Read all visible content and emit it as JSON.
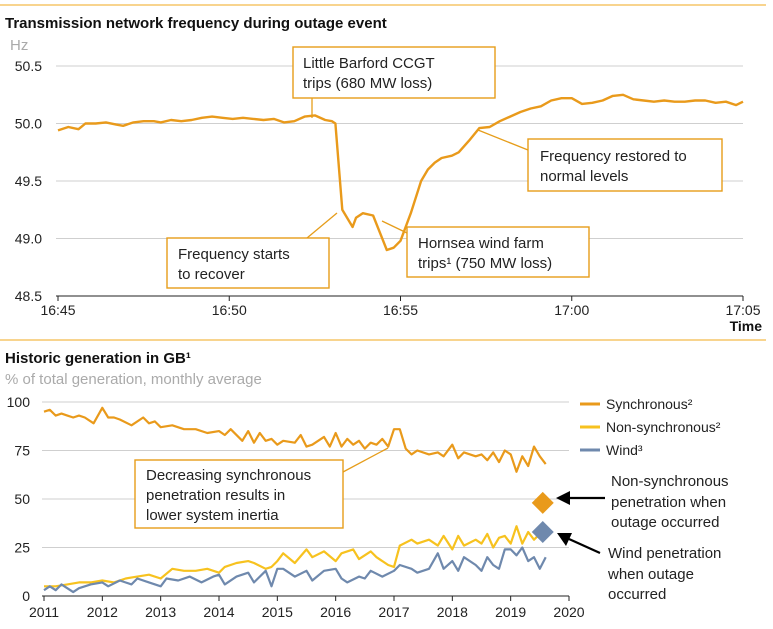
{
  "colors": {
    "synchronous": "#e99a1b",
    "non_synchronous": "#f7c21f",
    "wind": "#6f89ad",
    "accent_rule": "#f0a81c",
    "annotation_border": "#e69d1a"
  },
  "chart_data": [
    {
      "type": "line",
      "title": "Transmission network frequency during outage event",
      "ylabel": "Hz",
      "xlabel": "Time",
      "ylim": [
        48.5,
        50.6
      ],
      "xlim_minutes": [
        0,
        20
      ],
      "yticks": [
        "48.5",
        "49.0",
        "49.5",
        "50.0",
        "50.5"
      ],
      "ytick_values": [
        48.5,
        49.0,
        49.5,
        50.0,
        50.5
      ],
      "xticks": [
        "16:45",
        "16:50",
        "16:55",
        "17:00",
        "17:05"
      ],
      "xtick_values": [
        0,
        5,
        10,
        15,
        20
      ],
      "grid": true,
      "series": [
        {
          "color_key": "synchronous",
          "x": [
            0,
            0.3,
            0.6,
            0.8,
            1.1,
            1.4,
            1.7,
            1.9,
            2.2,
            2.5,
            2.8,
            3.0,
            3.3,
            3.6,
            3.9,
            4.2,
            4.5,
            4.8,
            5.1,
            5.4,
            5.7,
            6.0,
            6.3,
            6.6,
            6.9,
            7.2,
            7.5,
            7.8,
            8.0,
            8.1,
            8.3,
            8.6,
            8.7,
            8.9,
            9.2,
            9.6,
            9.8,
            10.0,
            10.3,
            10.6,
            10.8,
            11.0,
            11.2,
            11.5,
            11.7,
            12.0,
            12.3,
            12.6,
            12.9,
            13.2,
            13.5,
            13.8,
            14.1,
            14.4,
            14.7,
            15.0,
            15.3,
            15.6,
            15.9,
            16.2,
            16.5,
            16.8,
            17.1,
            17.4,
            17.7,
            18.0,
            18.3,
            18.6,
            18.9,
            19.2,
            19.5,
            19.8,
            20.0
          ],
          "y": [
            49.94,
            49.97,
            49.95,
            50.0,
            50.0,
            50.01,
            49.99,
            49.98,
            50.01,
            50.02,
            50.02,
            50.01,
            50.03,
            50.02,
            50.03,
            50.05,
            50.06,
            50.05,
            50.04,
            50.05,
            50.04,
            50.03,
            50.04,
            50.01,
            50.02,
            50.06,
            50.07,
            50.03,
            50.02,
            50.0,
            49.25,
            49.1,
            49.18,
            49.22,
            49.2,
            48.9,
            48.92,
            48.98,
            49.22,
            49.5,
            49.6,
            49.66,
            49.7,
            49.72,
            49.75,
            49.85,
            49.96,
            49.97,
            50.02,
            50.06,
            50.1,
            50.13,
            50.15,
            50.2,
            50.22,
            50.22,
            50.17,
            50.18,
            50.2,
            50.24,
            50.25,
            50.21,
            50.2,
            50.19,
            50.2,
            50.19,
            50.19,
            50.2,
            50.2,
            50.18,
            50.19,
            50.16,
            50.19
          ]
        }
      ],
      "annotations": [
        {
          "lines": [
            "Little Barford CCGT",
            "trips (680 MW loss)"
          ]
        },
        {
          "lines": [
            "Frequency restored to",
            "normal levels"
          ]
        },
        {
          "lines": [
            "Frequency starts",
            "to recover"
          ]
        },
        {
          "lines": [
            "Hornsea wind farm",
            "trips¹ (750 MW loss)"
          ]
        }
      ]
    },
    {
      "type": "line",
      "title": "Historic generation in GB¹",
      "ylabel": "% of total generation, monthly average",
      "ylim": [
        0,
        100
      ],
      "xlim": [
        2011,
        2020
      ],
      "yticks": [
        "0",
        "25",
        "50",
        "75",
        "100"
      ],
      "ytick_values": [
        0,
        25,
        50,
        75,
        100
      ],
      "xticks": [
        "2011",
        "2012",
        "2013",
        "2014",
        "2015",
        "2016",
        "2017",
        "2018",
        "2019",
        "2020"
      ],
      "xtick_values": [
        2011,
        2012,
        2013,
        2014,
        2015,
        2016,
        2017,
        2018,
        2019,
        2020
      ],
      "grid": true,
      "legend_position": "right",
      "series": [
        {
          "name": "Synchronous²",
          "color_key": "synchronous",
          "x": [
            2011.0,
            2011.1,
            2011.2,
            2011.3,
            2011.4,
            2011.5,
            2011.6,
            2011.7,
            2011.85,
            2012.0,
            2012.1,
            2012.2,
            2012.3,
            2012.5,
            2012.7,
            2012.8,
            2012.9,
            2013.0,
            2013.2,
            2013.4,
            2013.6,
            2013.8,
            2014.0,
            2014.1,
            2014.2,
            2014.4,
            2014.5,
            2014.6,
            2014.7,
            2014.8,
            2014.9,
            2015.0,
            2015.1,
            2015.3,
            2015.4,
            2015.5,
            2015.6,
            2015.8,
            2015.9,
            2016.0,
            2016.1,
            2016.2,
            2016.3,
            2016.4,
            2016.5,
            2016.6,
            2016.7,
            2016.8,
            2016.9,
            2017.0,
            2017.1,
            2017.2,
            2017.3,
            2017.4,
            2017.6,
            2017.75,
            2017.85,
            2018.0,
            2018.1,
            2018.2,
            2018.4,
            2018.5,
            2018.6,
            2018.7,
            2018.8,
            2018.9,
            2019.0,
            2019.1,
            2019.2,
            2019.3,
            2019.4,
            2019.5,
            2019.6
          ],
          "y": [
            95,
            96,
            93,
            94,
            93,
            92,
            93,
            92,
            89,
            97,
            92,
            92,
            91,
            88,
            92,
            89,
            90,
            87,
            88,
            86,
            86,
            84,
            85,
            83,
            86,
            80,
            85,
            79,
            84,
            80,
            81,
            78,
            80,
            79,
            83,
            77,
            78,
            82,
            77,
            84,
            77,
            81,
            78,
            80,
            76,
            79,
            78,
            81,
            77,
            86,
            86,
            76,
            73,
            75,
            73,
            74,
            72,
            78,
            71,
            74,
            72,
            73,
            70,
            74,
            69,
            75,
            73,
            64,
            72,
            67,
            77,
            72,
            68
          ]
        },
        {
          "name": "Non-synchronous²",
          "color_key": "non_synchronous",
          "x": [
            2011.0,
            2011.2,
            2011.4,
            2011.6,
            2011.8,
            2012.0,
            2012.2,
            2012.4,
            2012.6,
            2012.8,
            2013.0,
            2013.2,
            2013.4,
            2013.6,
            2013.8,
            2014.0,
            2014.1,
            2014.3,
            2014.5,
            2014.6,
            2014.8,
            2014.9,
            2015.0,
            2015.1,
            2015.3,
            2015.5,
            2015.6,
            2015.8,
            2016.0,
            2016.1,
            2016.3,
            2016.4,
            2016.6,
            2016.7,
            2016.9,
            2017.0,
            2017.1,
            2017.3,
            2017.4,
            2017.6,
            2017.75,
            2017.85,
            2018.0,
            2018.1,
            2018.2,
            2018.4,
            2018.5,
            2018.6,
            2018.7,
            2018.8,
            2018.9,
            2019.0,
            2019.1,
            2019.2,
            2019.3,
            2019.4,
            2019.5,
            2019.6
          ],
          "y": [
            5,
            5,
            6,
            7,
            7,
            8,
            7,
            9,
            10,
            11,
            9,
            14,
            13,
            13,
            14,
            12,
            15,
            17,
            18,
            17,
            14,
            15,
            18,
            22,
            17,
            24,
            20,
            23,
            18,
            22,
            24,
            19,
            23,
            20,
            16,
            15,
            26,
            29,
            27,
            29,
            26,
            31,
            24,
            31,
            26,
            29,
            27,
            32,
            25,
            30,
            31,
            27,
            36,
            27,
            33,
            29,
            32,
            30
          ]
        },
        {
          "name": "Wind³",
          "color_key": "wind",
          "x": [
            2011.0,
            2011.1,
            2011.2,
            2011.3,
            2011.5,
            2011.6,
            2011.8,
            2012.0,
            2012.1,
            2012.3,
            2012.5,
            2012.6,
            2012.8,
            2013.0,
            2013.1,
            2013.3,
            2013.5,
            2013.7,
            2013.9,
            2014.0,
            2014.1,
            2014.3,
            2014.5,
            2014.6,
            2014.8,
            2014.9,
            2015.0,
            2015.1,
            2015.3,
            2015.5,
            2015.6,
            2015.8,
            2016.0,
            2016.1,
            2016.2,
            2016.4,
            2016.5,
            2016.6,
            2016.8,
            2017.0,
            2017.1,
            2017.3,
            2017.4,
            2017.6,
            2017.75,
            2017.85,
            2018.0,
            2018.1,
            2018.2,
            2018.4,
            2018.5,
            2018.6,
            2018.7,
            2018.8,
            2018.9,
            2019.0,
            2019.1,
            2019.2,
            2019.3,
            2019.4,
            2019.5,
            2019.6
          ],
          "y": [
            3,
            5,
            3,
            6,
            2,
            4,
            6,
            7,
            5,
            8,
            6,
            9,
            7,
            5,
            9,
            8,
            10,
            7,
            10,
            11,
            6,
            10,
            12,
            7,
            13,
            5,
            14,
            14,
            10,
            13,
            8,
            13,
            14,
            9,
            7,
            10,
            9,
            13,
            10,
            13,
            16,
            14,
            12,
            14,
            22,
            14,
            18,
            13,
            20,
            16,
            13,
            20,
            16,
            14,
            24,
            24,
            21,
            25,
            18,
            20,
            14,
            20
          ]
        }
      ],
      "markers": [
        {
          "label": "Non-synchronous penetration when outage occurred",
          "x": 2019.55,
          "y": 48,
          "color_key": "synchronous"
        },
        {
          "label": "Wind penetration when outage occurred",
          "x": 2019.55,
          "y": 33,
          "color_key": "wind"
        }
      ],
      "annotation": {
        "lines": [
          "Decreasing synchronous",
          "penetration results in",
          "lower system inertia"
        ]
      },
      "side_notes": [
        {
          "lines": [
            "Non-synchronous",
            "penetration when",
            "outage occurred"
          ]
        },
        {
          "lines": [
            "Wind penetration",
            "when outage",
            "occurred"
          ]
        }
      ]
    }
  ]
}
